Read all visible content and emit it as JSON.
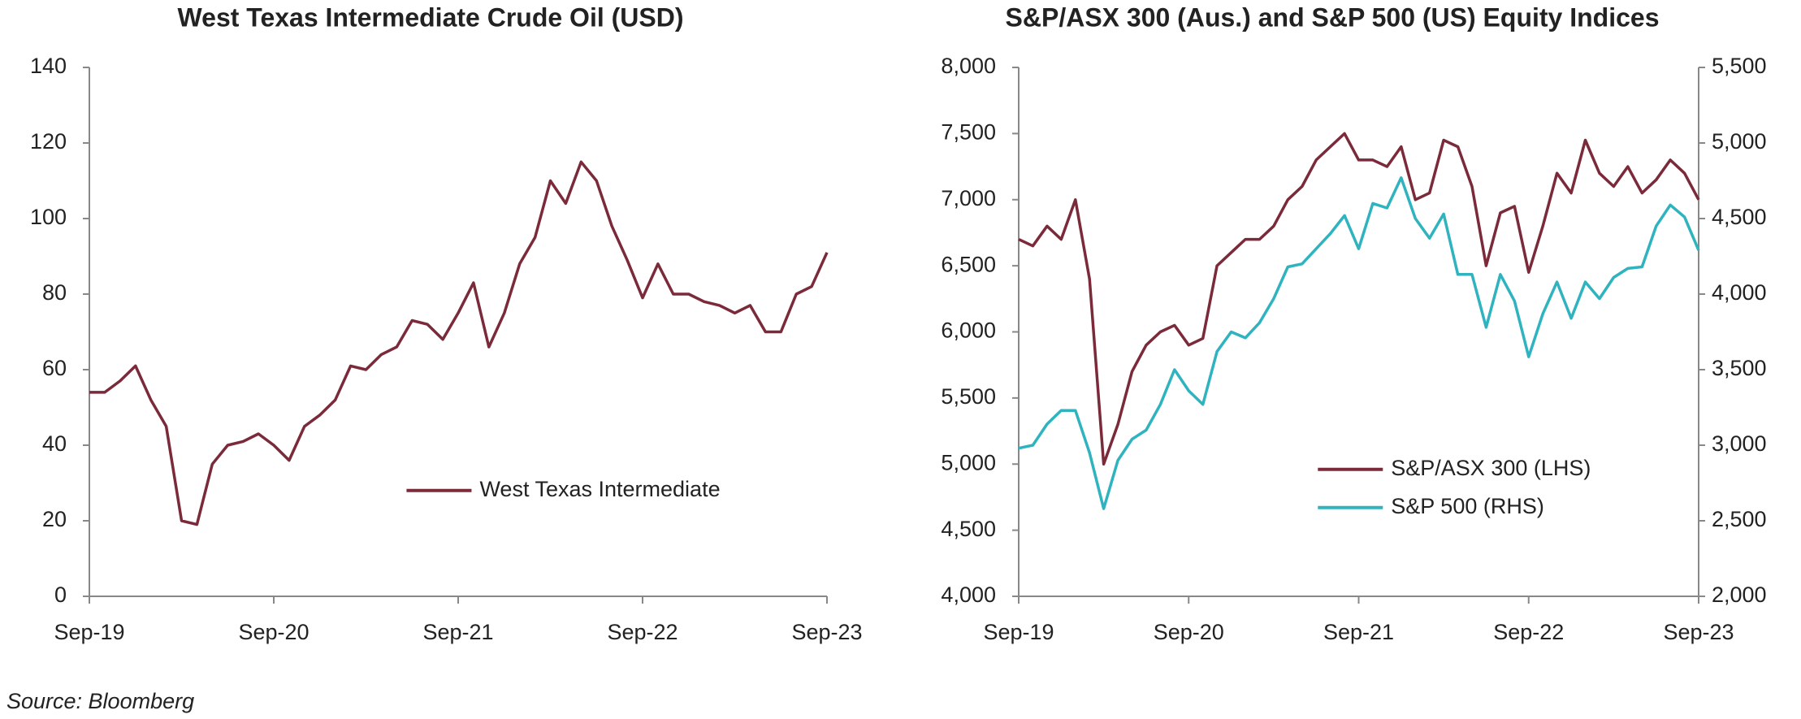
{
  "chart_data": [
    {
      "type": "line",
      "title": "West Texas Intermediate Crude Oil (USD)",
      "x": [
        "2019-09",
        "2019-10",
        "2019-11",
        "2019-12",
        "2020-01",
        "2020-02",
        "2020-03",
        "2020-04",
        "2020-05",
        "2020-06",
        "2020-07",
        "2020-08",
        "2020-09",
        "2020-10",
        "2020-11",
        "2020-12",
        "2021-01",
        "2021-02",
        "2021-03",
        "2021-04",
        "2021-05",
        "2021-06",
        "2021-07",
        "2021-08",
        "2021-09",
        "2021-10",
        "2021-11",
        "2021-12",
        "2022-01",
        "2022-02",
        "2022-03",
        "2022-04",
        "2022-05",
        "2022-06",
        "2022-07",
        "2022-08",
        "2022-09",
        "2022-10",
        "2022-11",
        "2022-12",
        "2023-01",
        "2023-02",
        "2023-03",
        "2023-04",
        "2023-05",
        "2023-06",
        "2023-07",
        "2023-08",
        "2023-09"
      ],
      "xlim": [
        "2019-09",
        "2023-09"
      ],
      "xticks": [
        {
          "value": "2019-09",
          "label": "Sep-19"
        },
        {
          "value": "2020-09",
          "label": "Sep-20"
        },
        {
          "value": "2021-09",
          "label": "Sep-21"
        },
        {
          "value": "2022-09",
          "label": "Sep-22"
        },
        {
          "value": "2023-09",
          "label": "Sep-23"
        }
      ],
      "ylim": [
        0,
        140
      ],
      "yticks": [
        0,
        20,
        40,
        60,
        80,
        100,
        120,
        140
      ],
      "legend": "center right",
      "series": [
        {
          "name": "West Texas Intermediate",
          "color": "#7b2a3a",
          "values": [
            54,
            54,
            57,
            61,
            52,
            45,
            20,
            19,
            35,
            40,
            41,
            43,
            40,
            36,
            45,
            48,
            52,
            61,
            60,
            64,
            66,
            73,
            72,
            68,
            75,
            83,
            66,
            75,
            88,
            95,
            110,
            104,
            115,
            110,
            98,
            89,
            79,
            88,
            80,
            80,
            78,
            77,
            75,
            77,
            70,
            70,
            80,
            82,
            91
          ]
        }
      ]
    },
    {
      "type": "line",
      "title": "S&P/ASX 300 (Aus.) and S&P 500 (US) Equity Indices",
      "x": [
        "2019-09",
        "2019-10",
        "2019-11",
        "2019-12",
        "2020-01",
        "2020-02",
        "2020-03",
        "2020-04",
        "2020-05",
        "2020-06",
        "2020-07",
        "2020-08",
        "2020-09",
        "2020-10",
        "2020-11",
        "2020-12",
        "2021-01",
        "2021-02",
        "2021-03",
        "2021-04",
        "2021-05",
        "2021-06",
        "2021-07",
        "2021-08",
        "2021-09",
        "2021-10",
        "2021-11",
        "2021-12",
        "2022-01",
        "2022-02",
        "2022-03",
        "2022-04",
        "2022-05",
        "2022-06",
        "2022-07",
        "2022-08",
        "2022-09",
        "2022-10",
        "2022-11",
        "2022-12",
        "2023-01",
        "2023-02",
        "2023-03",
        "2023-04",
        "2023-05",
        "2023-06",
        "2023-07",
        "2023-08",
        "2023-09"
      ],
      "xlim": [
        "2019-09",
        "2023-09"
      ],
      "xticks": [
        {
          "value": "2019-09",
          "label": "Sep-19"
        },
        {
          "value": "2020-09",
          "label": "Sep-20"
        },
        {
          "value": "2021-09",
          "label": "Sep-21"
        },
        {
          "value": "2022-09",
          "label": "Sep-22"
        },
        {
          "value": "2023-09",
          "label": "Sep-23"
        }
      ],
      "ylim": [
        4000,
        8000
      ],
      "yticks": [
        {
          "value": 4000,
          "label": "4,000"
        },
        {
          "value": 4500,
          "label": "4,500"
        },
        {
          "value": 5000,
          "label": "5,000"
        },
        {
          "value": 5500,
          "label": "5,500"
        },
        {
          "value": 6000,
          "label": "6,000"
        },
        {
          "value": 6500,
          "label": "6,500"
        },
        {
          "value": 7000,
          "label": "7,000"
        },
        {
          "value": 7500,
          "label": "7,500"
        },
        {
          "value": 8000,
          "label": "8,000"
        }
      ],
      "y2lim": [
        2000,
        5500
      ],
      "y2ticks": [
        {
          "value": 2000,
          "label": "2,000"
        },
        {
          "value": 2500,
          "label": "2,500"
        },
        {
          "value": 3000,
          "label": "3,000"
        },
        {
          "value": 3500,
          "label": "3,500"
        },
        {
          "value": 4000,
          "label": "4,000"
        },
        {
          "value": 4500,
          "label": "4,500"
        },
        {
          "value": 5000,
          "label": "5,000"
        },
        {
          "value": 5500,
          "label": "5,500"
        }
      ],
      "legend": "lower right",
      "series": [
        {
          "name": "S&P/ASX 300 (LHS)",
          "color": "#7b2a3a",
          "values": [
            6700,
            6650,
            6800,
            6700,
            7000,
            6400,
            5000,
            5300,
            5700,
            5900,
            6000,
            6050,
            5900,
            5950,
            6500,
            6600,
            6700,
            6700,
            6800,
            7000,
            7100,
            7300,
            7400,
            7500,
            7300,
            7300,
            7250,
            7400,
            7000,
            7050,
            7450,
            7400,
            7100,
            6500,
            6900,
            6950,
            6450,
            6800,
            7200,
            7050,
            7450,
            7200,
            7100,
            7250,
            7050,
            7150,
            7300,
            7200,
            7000
          ]
        },
        {
          "name": "S&P 500 (RHS)",
          "color": "#2fb3bf",
          "axis": "y2",
          "values": [
            2980,
            3000,
            3140,
            3230,
            3230,
            2950,
            2580,
            2900,
            3040,
            3100,
            3270,
            3500,
            3360,
            3270,
            3620,
            3750,
            3710,
            3810,
            3970,
            4180,
            4200,
            4300,
            4400,
            4520,
            4300,
            4600,
            4570,
            4770,
            4500,
            4370,
            4530,
            4130,
            4130,
            3780,
            4130,
            3955,
            3585,
            3870,
            4080,
            3840,
            4080,
            3970,
            4110,
            4170,
            4180,
            4450,
            4590,
            4510,
            4290
          ]
        }
      ]
    }
  ],
  "source": "Source: Bloomberg"
}
